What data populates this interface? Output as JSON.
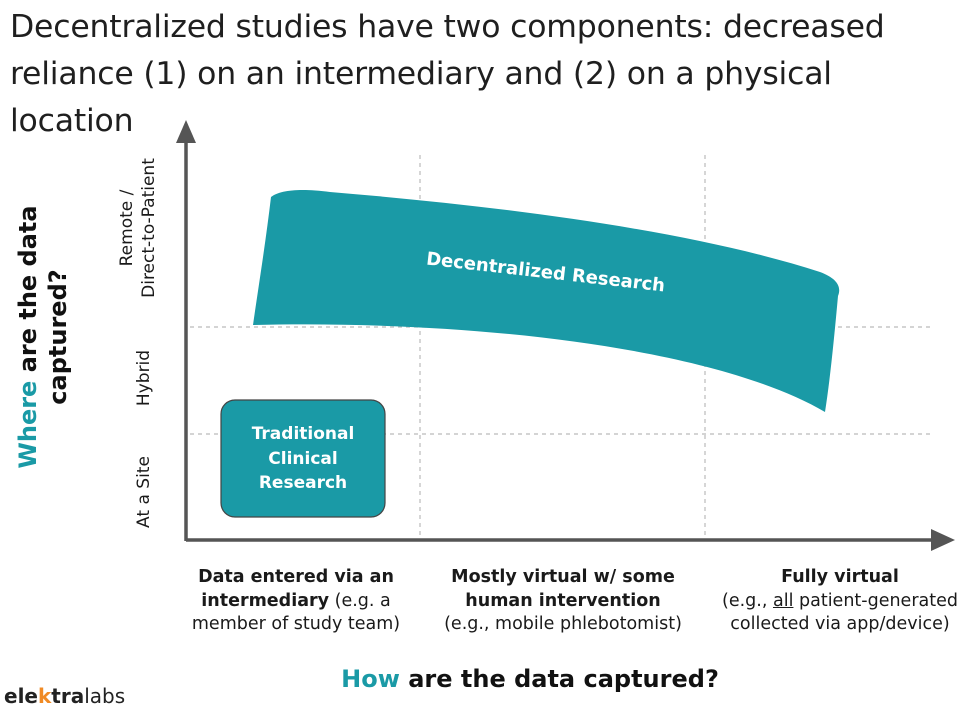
{
  "title": "Decentralized studies have two components: decreased reliance (1) on an intermediary and (2) on a physical location",
  "y_axis": {
    "label_highlight": "Where",
    "label_rest_line1": " are the data",
    "label_line2": "captured?",
    "ticks": {
      "remote_line1": "Remote /",
      "remote_line2": "Direct-to-Patient",
      "hybrid": "Hybrid",
      "site": "At a Site"
    }
  },
  "x_axis": {
    "label_highlight": "How",
    "label_rest": " are the data captured?",
    "categories": {
      "intermediary": {
        "bold_line1": "Data entered via an",
        "bold_line2": "intermediary",
        "normal_line2": " (e.g. a",
        "normal_line3": "member of study team)"
      },
      "mostly_virtual": {
        "bold_line1": "Mostly virtual w/ some",
        "bold_line2": "human intervention",
        "normal_line3": "(e.g., mobile phlebotomist)"
      },
      "fully_virtual": {
        "bold_line1": "Fully virtual",
        "line2_pre": "(e.g., ",
        "line2_underline": "all",
        "line2_post": " patient-generated",
        "line3": "collected via app/device)"
      }
    }
  },
  "regions": {
    "traditional_line1": "Traditional",
    "traditional_line2": "Clinical",
    "traditional_line3": "Research",
    "decentralized": "Decentralized Research"
  },
  "logo": {
    "part1": "ele",
    "part2": "k",
    "part3": "tra",
    "part4": "labs"
  },
  "colors": {
    "teal": "#1a9aa6",
    "axis": "#555555",
    "grid": "#bbbbbb"
  }
}
